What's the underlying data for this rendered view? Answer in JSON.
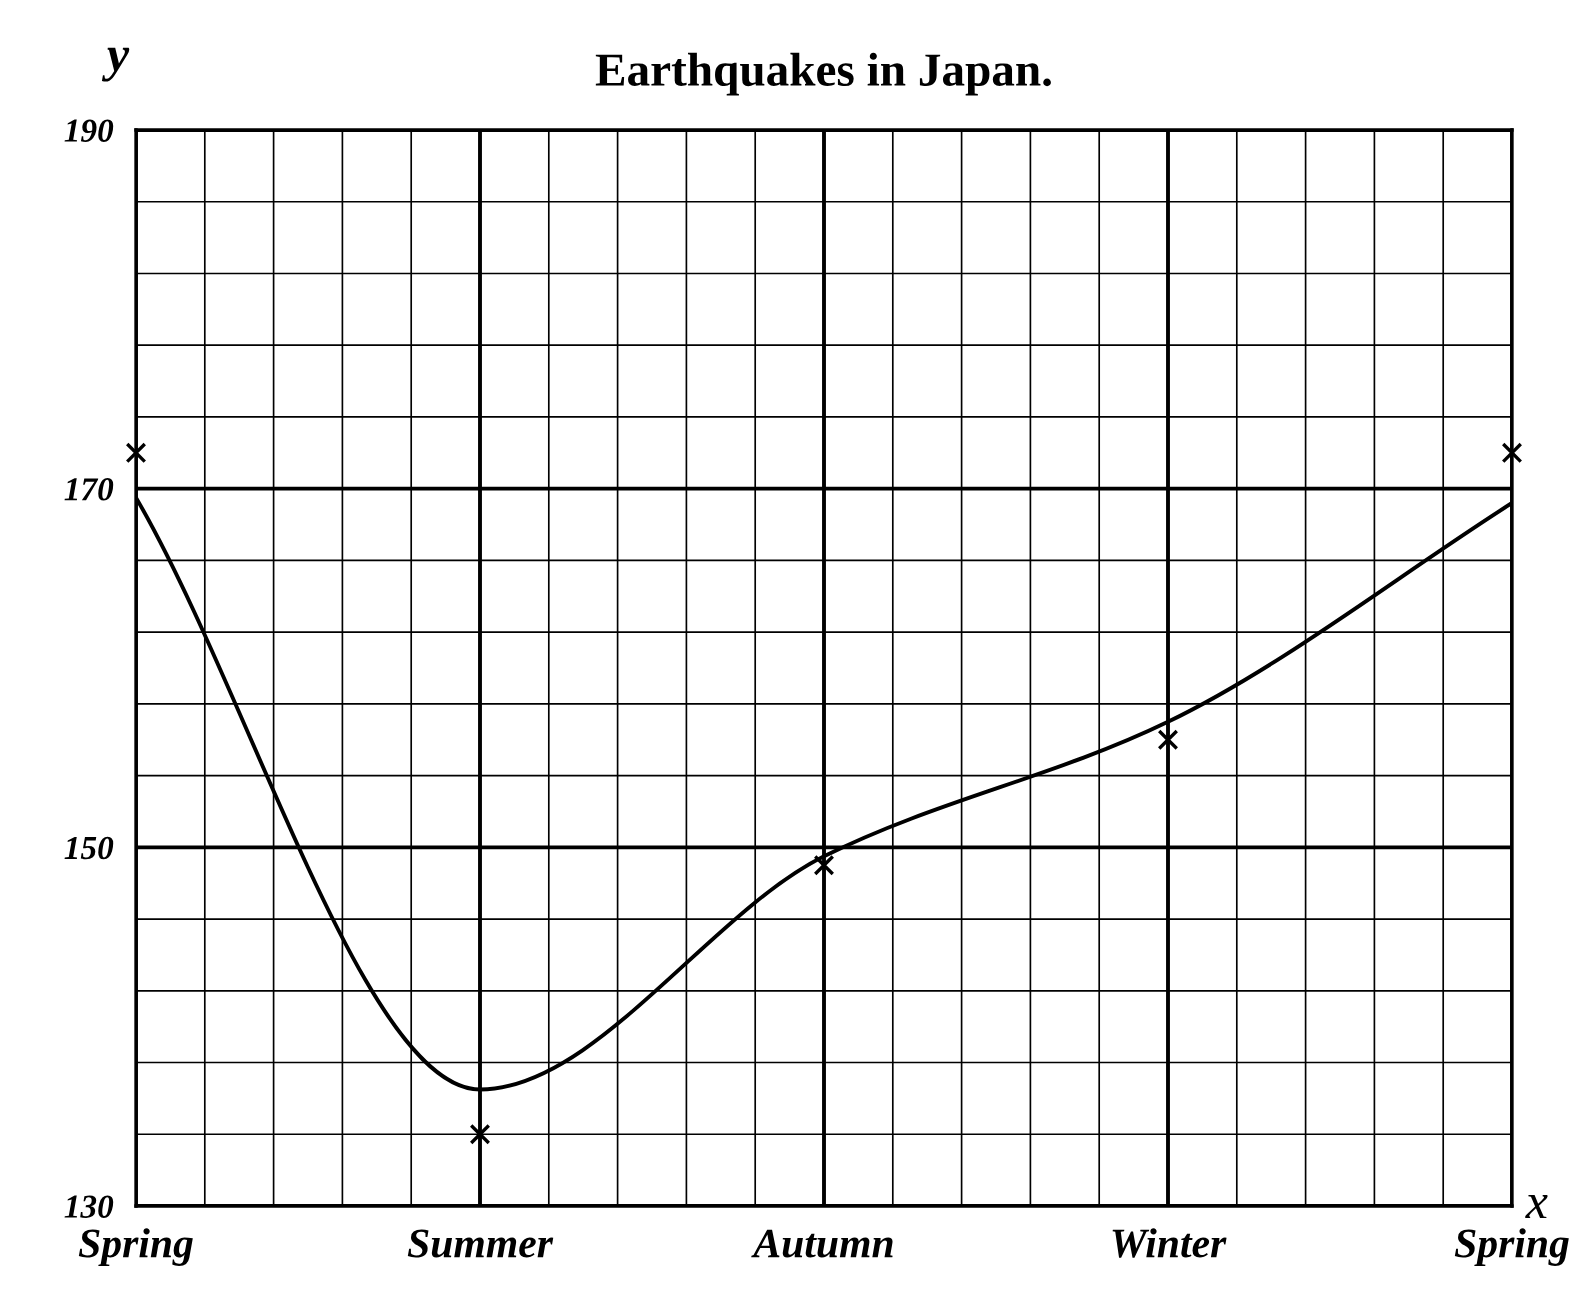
{
  "chart_data": {
    "type": "line",
    "title": "Earthquakes in Japan.",
    "xlabel": "x",
    "ylabel": "y",
    "categories": [
      "Spring",
      "Summer",
      "Autumn",
      "Winter",
      "Spring"
    ],
    "ylim": [
      130,
      190
    ],
    "yticks": [
      130,
      {
        "value": 134,
        "label": null
      },
      {
        "value": 138,
        "label": null
      },
      {
        "value": 142,
        "label": null
      },
      {
        "value": 146,
        "label": null
      },
      150,
      {
        "value": 154,
        "label": null
      },
      {
        "value": 158,
        "label": null
      },
      {
        "value": 162,
        "label": null
      },
      {
        "value": 166,
        "label": null
      },
      170,
      {
        "value": 174,
        "label": null
      },
      {
        "value": 178,
        "label": null
      },
      {
        "value": 182,
        "label": null
      },
      {
        "value": 186,
        "label": null
      },
      190
    ],
    "grid": true,
    "series": [
      {
        "color": "#000000",
        "line_style": "solid",
        "values": [
          169.5,
          136.5,
          149.5,
          157,
          169.2
        ]
      },
      {
        "type": "scatter",
        "color": "#000000",
        "marker": "cross",
        "values": [
          172,
          134,
          149,
          156,
          172
        ]
      }
    ]
  }
}
